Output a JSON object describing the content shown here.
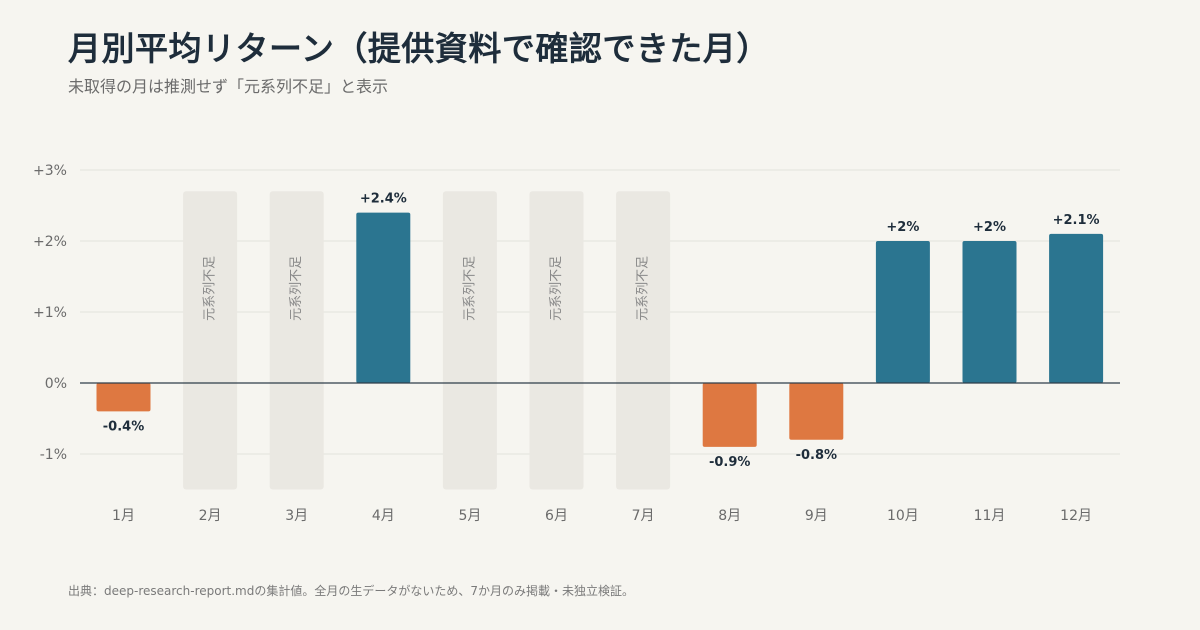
{
  "title": "月別平均リターン（提供資料で確認できた月）",
  "subtitle": "未取得の月は推測せず「元系列不足」と表示",
  "footnote": "出典：deep-research-report.mdの集計値。全月の生データがないため、7か月のみ掲載・未独立検証。",
  "colors": {
    "positive": "#2b7590",
    "negative": "#de7841",
    "missing": "#eae8e2",
    "axis_text": "#6b6b6b",
    "label_text": "#1e2d3b",
    "grid": "#e3e2dc",
    "zero_line": "#2f3d49"
  },
  "chart_data": {
    "type": "bar",
    "categories": [
      "1月",
      "2月",
      "3月",
      "4月",
      "5月",
      "6月",
      "7月",
      "8月",
      "9月",
      "10月",
      "11月",
      "12月"
    ],
    "values": [
      -0.4,
      null,
      null,
      2.4,
      null,
      null,
      null,
      -0.9,
      -0.8,
      2.0,
      2.0,
      2.1
    ],
    "data_labels": [
      "-0.4%",
      null,
      null,
      "+2.4%",
      null,
      null,
      null,
      "-0.9%",
      "-0.8%",
      "+2%",
      "+2%",
      "+2.1%"
    ],
    "missing_label": "元系列不足",
    "y_ticks": [
      3,
      2,
      1,
      0,
      -1
    ],
    "y_tick_labels": [
      "+3%",
      "+2%",
      "+1%",
      "0%",
      "-1%"
    ],
    "ylim": [
      -1.5,
      3
    ],
    "grid": true,
    "xlabel": "",
    "ylabel": ""
  }
}
